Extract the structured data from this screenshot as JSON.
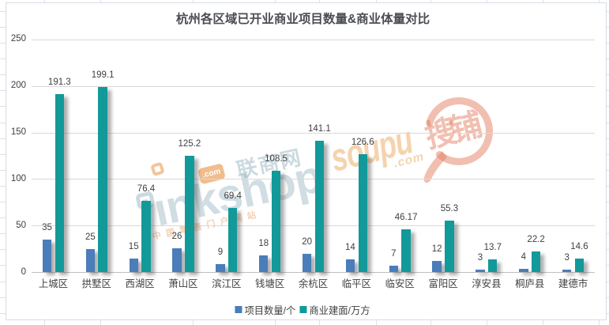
{
  "chart_data": {
    "type": "bar",
    "title": "杭州各区域已开业商业项目数量&商业体量对比",
    "categories": [
      "上城区",
      "拱墅区",
      "西湖区",
      "萧山区",
      "滨江区",
      "钱塘区",
      "余杭区",
      "临平区",
      "临安区",
      "富阳区",
      "淳安县",
      "桐庐县",
      "建德市"
    ],
    "series": [
      {
        "name": "项目数量/个",
        "color": "#4a7db9",
        "values": [
          35,
          25,
          15,
          26,
          9,
          18,
          20,
          14,
          7,
          12,
          3,
          4,
          3
        ],
        "labels": [
          "35",
          "25",
          "15",
          "26",
          "9",
          "18",
          "20",
          "14",
          "7",
          "12",
          "3",
          "4",
          "3"
        ]
      },
      {
        "name": "商业建面/万方",
        "color": "#12999a",
        "values": [
          191.3,
          199.1,
          76.4,
          125.2,
          69.4,
          108.5,
          141.1,
          126.6,
          46.17,
          55.3,
          13.7,
          22.2,
          14.6
        ],
        "labels": [
          "191.3",
          "199.1",
          "76.4",
          "125.2",
          "69.4",
          "108.5",
          "141.1",
          "126.6",
          "46.17",
          "55.3",
          "13.7",
          "22.2",
          "14.6"
        ]
      }
    ],
    "ylim": [
      0,
      250
    ],
    "yticks": [
      0,
      50,
      100,
      150,
      200,
      250
    ],
    "ytick_labels": [
      "0",
      "50",
      "100",
      "150",
      "200",
      "250"
    ],
    "grid": true,
    "legend_position": "bottom-center"
  },
  "title_color": "#4b4d52",
  "label_color": "#404040",
  "watermarks": {
    "linkshop": {
      "word": "linkshop",
      "word_tail": "ınkshop",
      "com_badge": ".com",
      "cn": "联商网",
      "slogan": "中国零售门户网站",
      "color": "#e8943e"
    },
    "soupu": {
      "word": "soupu",
      "com": ".com",
      "cn": "搜铺",
      "color": "#eb9676"
    }
  }
}
